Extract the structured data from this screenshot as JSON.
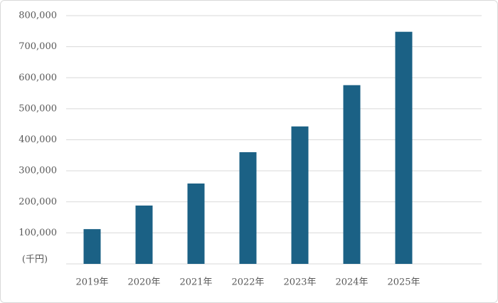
{
  "chart_data": {
    "type": "bar",
    "y_unit": "(千円)",
    "categories": [
      "2019年",
      "2020年",
      "2021年",
      "2022年",
      "2023年",
      "2024年",
      "2025年",
      null
    ],
    "values": [
      112000,
      188000,
      259000,
      360000,
      443000,
      576000,
      748000,
      null
    ],
    "color": "#1b6185",
    "ylim": [
      0,
      800000
    ],
    "yticks": [
      {
        "value": 100000,
        "label": "100,000"
      },
      {
        "value": 200000,
        "label": "200,000"
      },
      {
        "value": 300000,
        "label": "300,000"
      },
      {
        "value": 400000,
        "label": "400,000"
      },
      {
        "value": 500000,
        "label": "500,000"
      },
      {
        "value": 600000,
        "label": "600,000"
      },
      {
        "value": 700000,
        "label": "700,000"
      },
      {
        "value": 800000,
        "label": "800,000"
      }
    ],
    "grid": true
  }
}
